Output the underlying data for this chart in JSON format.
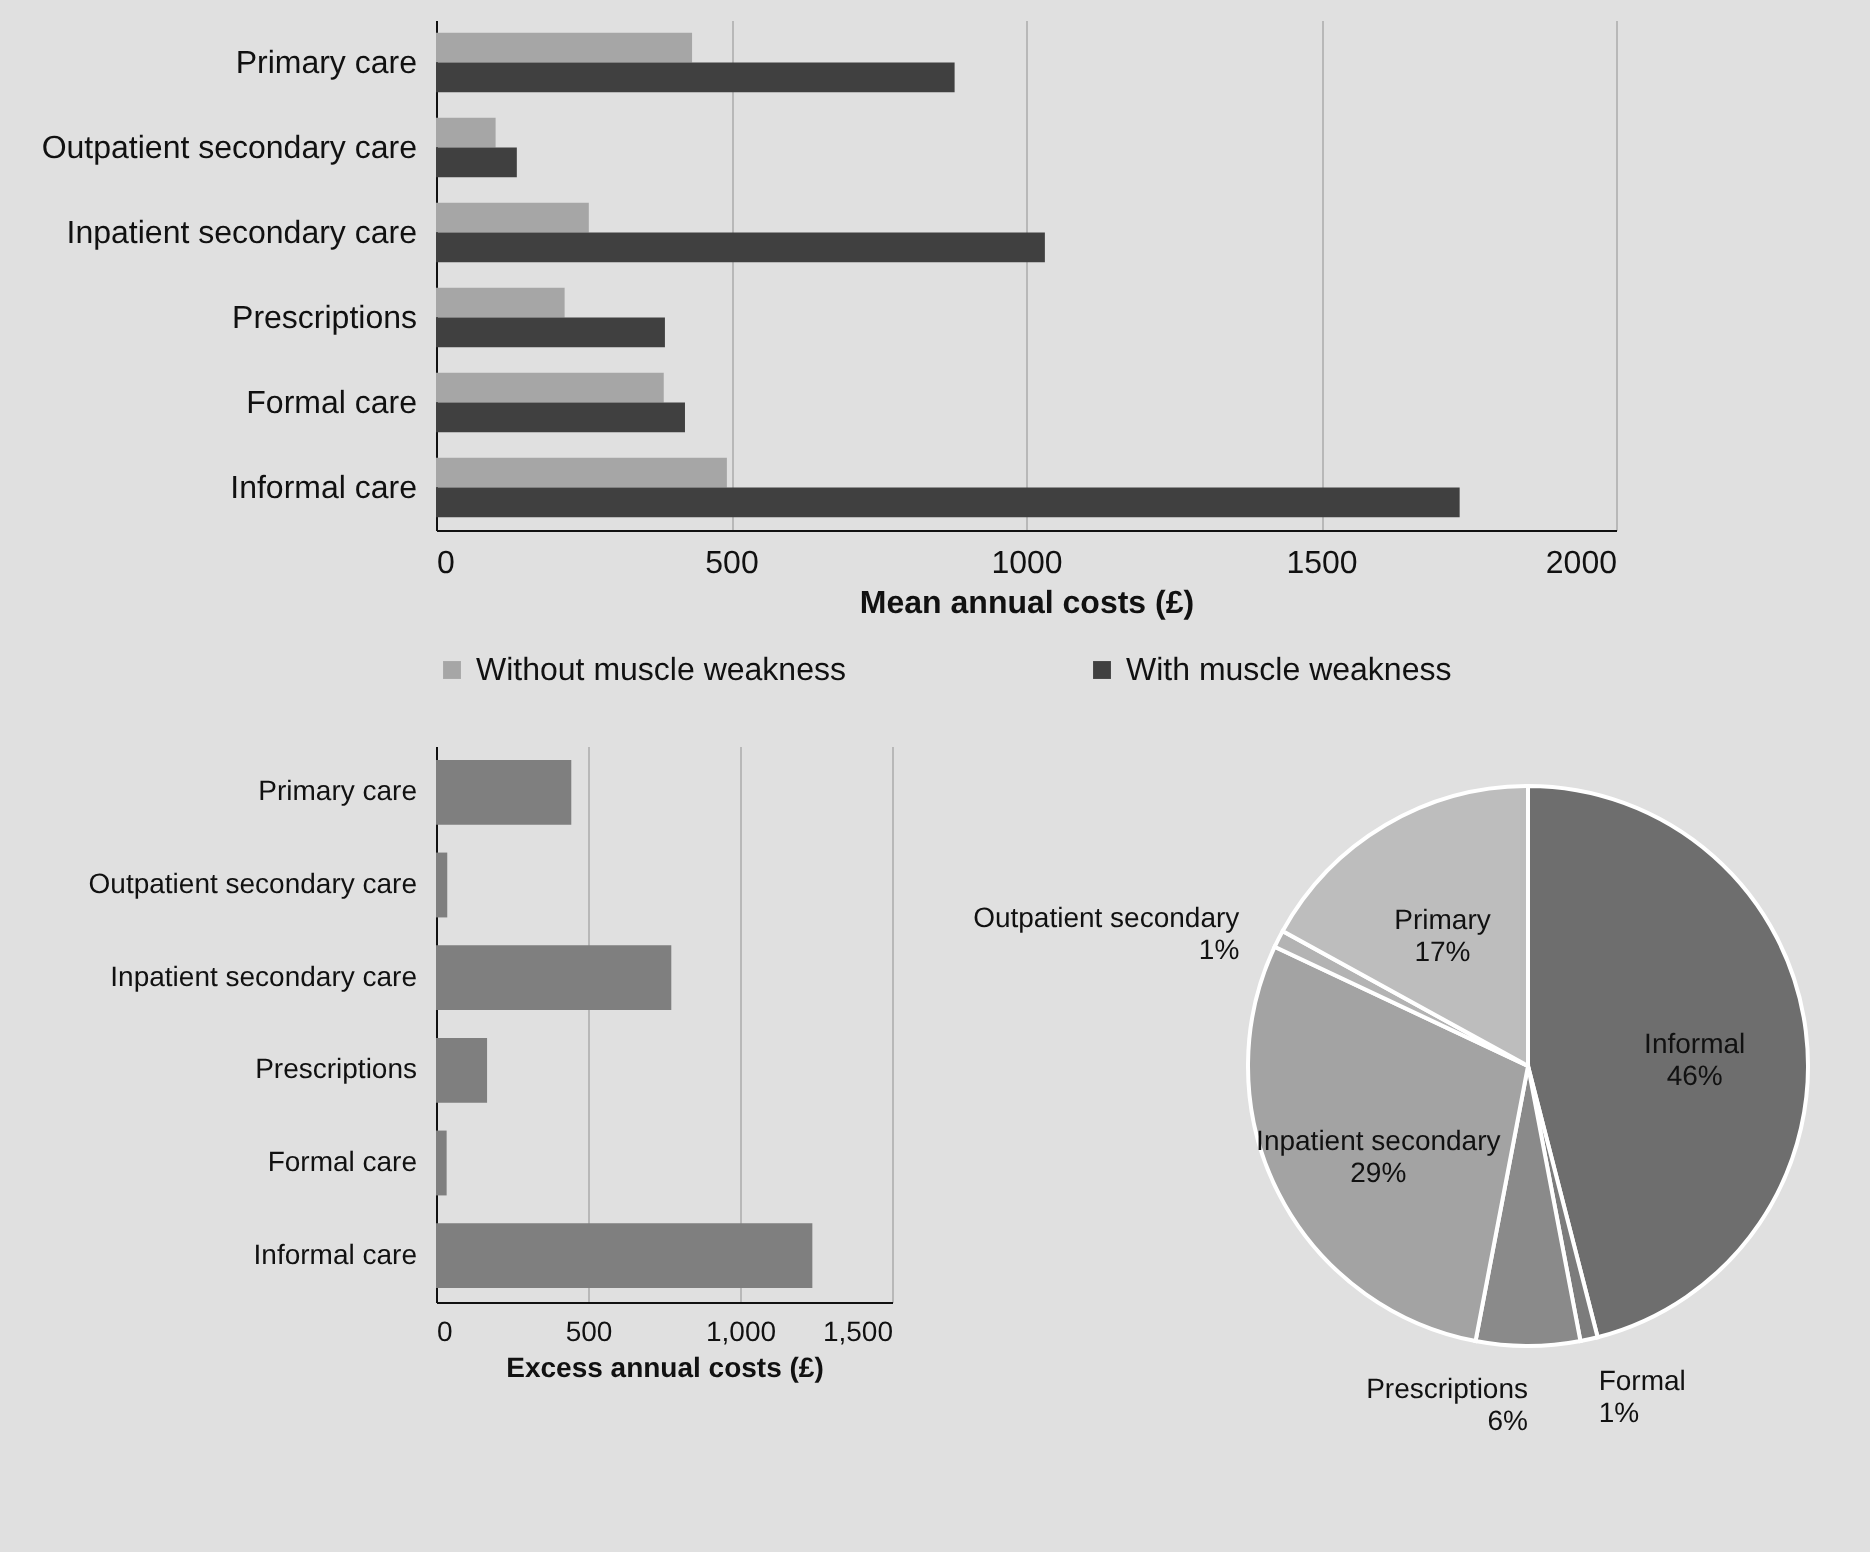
{
  "chart_data": [
    {
      "type": "bar",
      "orientation": "horizontal",
      "categories": [
        "Primary care",
        "Outpatient secondary care",
        "Inpatient secondary care",
        "Prescriptions",
        "Formal care",
        "Informal care"
      ],
      "xlabel": "Mean annual costs (£)",
      "xlim": [
        0,
        2000
      ],
      "xticks": [
        0,
        500,
        1000,
        1500,
        2000
      ],
      "grid": "x",
      "legend": "bottom",
      "series": [
        {
          "name": "Without muscle weakness",
          "color": "#a6a6a6",
          "values": [
            434,
            101,
            259,
            218,
            386,
            493
          ]
        },
        {
          "name": "With muscle weakness",
          "color": "#404040",
          "values": [
            879,
            137,
            1032,
            388,
            422,
            1735
          ]
        }
      ]
    },
    {
      "type": "bar",
      "orientation": "horizontal",
      "categories": [
        "Primary care",
        "Outpatient secondary care",
        "Inpatient secondary care",
        "Prescriptions",
        "Formal care",
        "Informal care"
      ],
      "xlabel": "Excess annual costs (£)",
      "xlim": [
        0,
        1500
      ],
      "xticks": [
        0,
        500,
        {
          "value": 1000,
          "label": "1,000"
        },
        {
          "value": 1500,
          "label": "1,500"
        }
      ],
      "grid": "x",
      "color": "#7f7f7f",
      "values": [
        445,
        37,
        774,
        168,
        35,
        1238
      ]
    },
    {
      "type": "pie",
      "categories": [
        "Informal",
        "Formal",
        "Prescriptions",
        "Inpatient secondary",
        "Outpatient secondary",
        "Primary"
      ],
      "values": [
        46,
        1,
        6,
        29,
        1,
        17
      ],
      "value_labels": [
        "46%",
        "1%",
        "6%",
        "29%",
        "1%",
        "17%"
      ],
      "colors": [
        "#6e6e6e",
        "#7c7c7c",
        "#8a8a8a",
        "#a3a3a3",
        "#b3b3b3",
        "#bdbdbd"
      ]
    }
  ]
}
